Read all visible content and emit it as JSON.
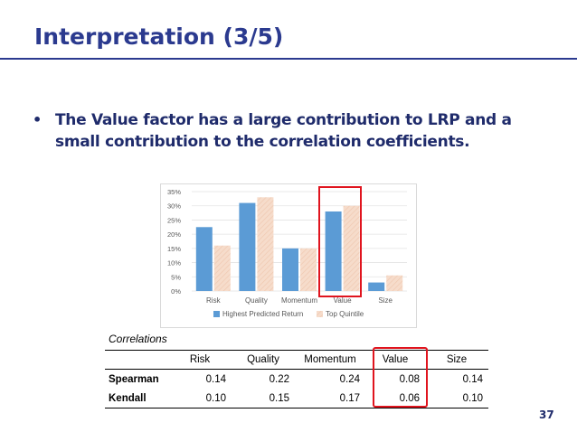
{
  "slide": {
    "title": "Interpretation (3/5)",
    "bullet_symbol": "•",
    "bullet_text": "The Value factor has a large contribution to LRP and a small contribution to the correlation coefficients.",
    "page_number": "37"
  },
  "colors": {
    "title": "#2b3a8f",
    "series_1": "#5b9bd5",
    "series_2": "#f6dccb",
    "highlight": "#e0141e"
  },
  "chart_data": {
    "type": "bar",
    "categories": [
      "Risk",
      "Quality",
      "Momentum",
      "Value",
      "Size"
    ],
    "series": [
      {
        "name": "Highest Predicted Return",
        "values": [
          22.5,
          31,
          15,
          28,
          3
        ]
      },
      {
        "name": "Top Quintile",
        "values": [
          16,
          33,
          15,
          30,
          5.5
        ]
      }
    ],
    "ylim": [
      0,
      35
    ],
    "yticks": [
      "0%",
      "5%",
      "10%",
      "15%",
      "20%",
      "25%",
      "30%",
      "35%"
    ],
    "ytick_values": [
      0,
      5,
      10,
      15,
      20,
      25,
      30,
      35
    ],
    "grid": true,
    "legend_position": "bottom",
    "title": "",
    "xlabel": "",
    "ylabel": ""
  },
  "correlations": {
    "caption": "Correlations",
    "columns": [
      "",
      "Risk",
      "Quality",
      "Momentum",
      "Value",
      "Size"
    ],
    "rows": [
      {
        "label": "Spearman",
        "values": [
          "0.14",
          "0.22",
          "0.24",
          "0.08",
          "0.14"
        ]
      },
      {
        "label": "Kendall",
        "values": [
          "0.10",
          "0.15",
          "0.17",
          "0.06",
          "0.10"
        ]
      }
    ]
  }
}
